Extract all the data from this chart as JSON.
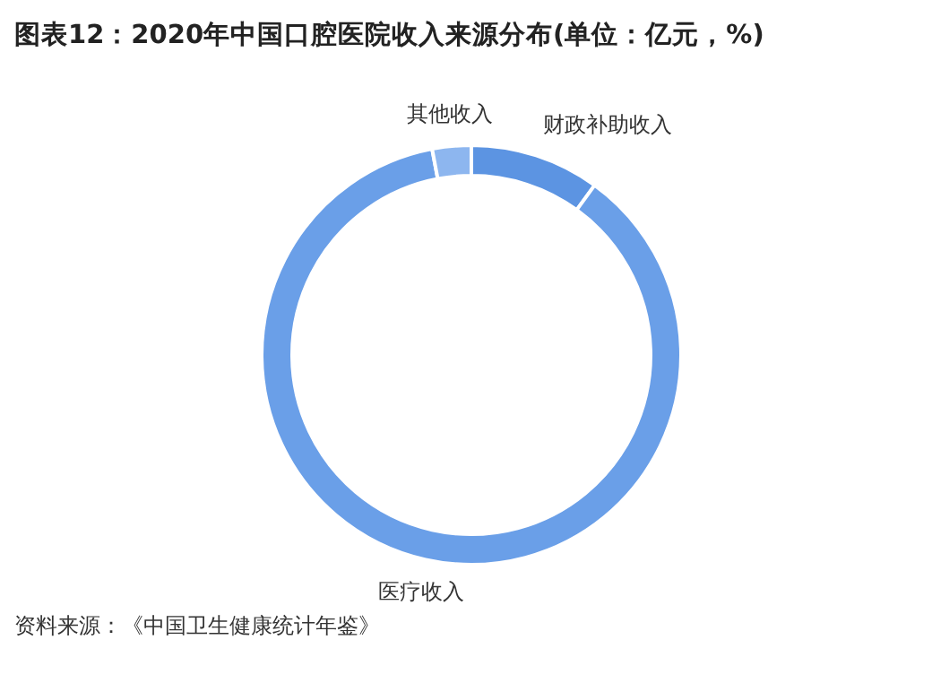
{
  "chart_data": {
    "type": "donut",
    "title": "图表12：2020年中国口腔医院收入来源分布(单位：亿元，%)",
    "categories": [
      "财政补助收入",
      "医疗收入",
      "其他收入"
    ],
    "values": [
      10,
      87,
      3
    ],
    "colors": [
      "#5c94e2",
      "#6a9fe8",
      "#8db6ef"
    ],
    "annotations": [
      "资料来源：《中国卫生健康统计年鉴》"
    ]
  }
}
